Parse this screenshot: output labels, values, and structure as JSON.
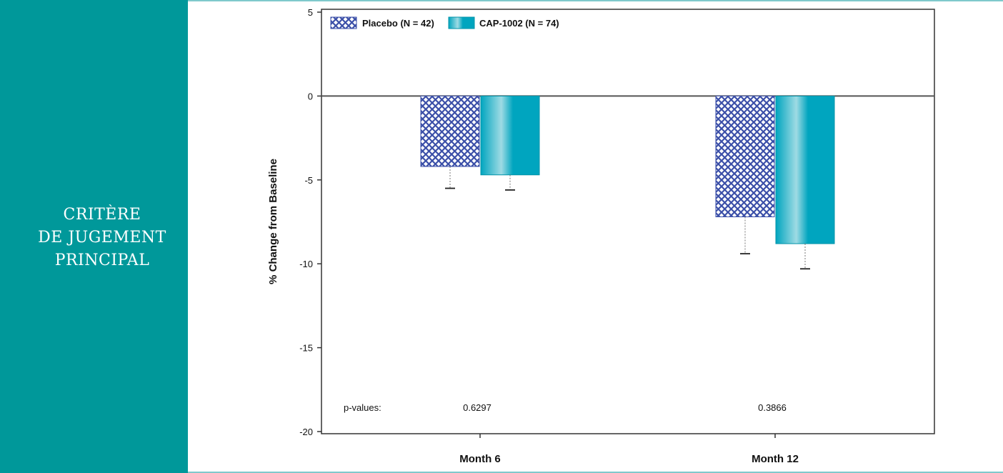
{
  "sidebar": {
    "title_lines": [
      "CRITÈRE",
      "DE JUGEMENT",
      "PRINCIPAL"
    ],
    "background": "#00989A"
  },
  "chart_data": {
    "type": "bar",
    "title": "",
    "xlabel": "",
    "ylabel": "% Change from Baseline",
    "categories": [
      "Month 6",
      "Month 12"
    ],
    "ylim": [
      -20,
      5
    ],
    "yticks": [
      5,
      0,
      -5,
      -10,
      -15,
      -20
    ],
    "series": [
      {
        "name": "Placebo (N = 42)",
        "values": [
          -4.2,
          -7.2
        ],
        "error_low": [
          -5.5,
          -9.4
        ],
        "pattern": "crosshatch",
        "color": "#3b4fa8"
      },
      {
        "name": "CAP-1002 (N = 74)",
        "values": [
          -4.7,
          -8.8
        ],
        "error_low": [
          -5.6,
          -10.3
        ],
        "pattern": "solid",
        "color": "#00A5BF"
      }
    ],
    "annotations": {
      "p_label": "p-values:",
      "p_values": [
        "0.6297",
        "0.3866"
      ]
    },
    "legend_position": "top-left",
    "grid": false
  }
}
